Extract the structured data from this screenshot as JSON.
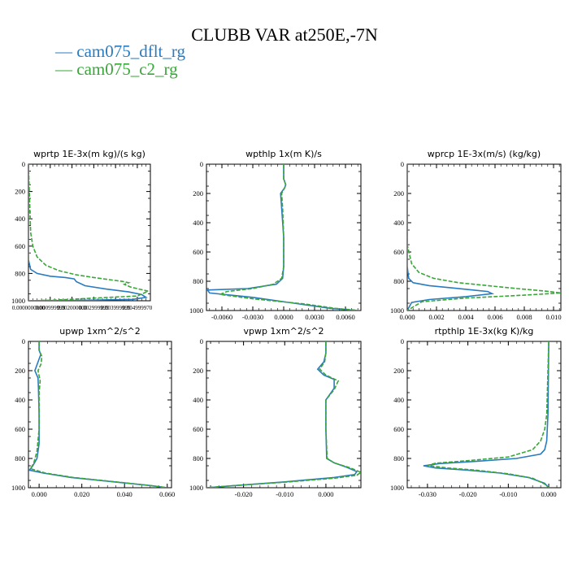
{
  "title": "CLUBB VAR at250E,-7N",
  "legend": [
    {
      "name": "cam075_dflt_rg",
      "color": "#2a7bbf",
      "dash": "solid"
    },
    {
      "name": "cam075_c2_rg",
      "color": "#3aa63a",
      "dash": "dashed"
    }
  ],
  "chart_data": [
    {
      "type": "line",
      "title": "wprtp  1E-3x(m kg)/(s kg)",
      "y_ticks": [
        "0",
        "200",
        "400",
        "600",
        "800",
        "1000"
      ],
      "ylim": [
        0,
        1000
      ],
      "x_ticks": [
        "0.0000000000",
        "0.000999999",
        "0.002000000",
        "0.002999999",
        "0.003999999",
        "0.004999970"
      ],
      "x_tick_values": [
        0.0,
        0.001,
        0.002,
        0.003,
        0.004,
        0.005
      ],
      "xlim": [
        0.0,
        0.0056
      ],
      "series": [
        {
          "name": "cam075_dflt_rg",
          "x": [
            0,
            0,
            0,
            0.0001,
            0.0004,
            0.001,
            0.0017,
            0.0021,
            0.0022,
            0.0026,
            0.0036,
            0.0046,
            0.0052,
            0.0054,
            0.0048,
            0.002,
            0
          ],
          "y": [
            0,
            500,
            700,
            770,
            800,
            820,
            830,
            840,
            860,
            890,
            915,
            935,
            955,
            975,
            990,
            998,
            1000
          ]
        },
        {
          "name": "cam075_c2_rg",
          "x": [
            0,
            0.0001,
            0.0002,
            0.0004,
            0.0008,
            0.0014,
            0.0022,
            0.003,
            0.0037,
            0.0043,
            0.0046,
            0.0044,
            0.0047,
            0.0055,
            0.005,
            0.0012,
            0
          ],
          "y": [
            0,
            500,
            600,
            680,
            740,
            780,
            810,
            830,
            845,
            858,
            868,
            880,
            900,
            930,
            965,
            995,
            1000
          ]
        }
      ]
    },
    {
      "type": "line",
      "title": "wpthlp  1x(m K)/s",
      "y_ticks": [
        "0",
        "200",
        "400",
        "600",
        "800",
        "1000"
      ],
      "ylim": [
        0,
        1000
      ],
      "x_ticks": [
        "-0.0060",
        "-0.0030",
        "0.0000",
        "0.0030",
        "0.0060"
      ],
      "x_tick_values": [
        -0.006,
        -0.003,
        0.0,
        0.003,
        0.006
      ],
      "xlim": [
        -0.0075,
        0.0075
      ],
      "series": [
        {
          "name": "cam075_dflt_rg",
          "x": [
            0,
            0,
            0.0002,
            0.0001,
            -0.0003,
            -0.0002,
            0,
            0,
            -0.0001,
            -0.0007,
            -0.0035,
            -0.0074,
            -0.0072,
            -0.003,
            0.001,
            0.0045,
            0.0072
          ],
          "y": [
            0,
            100,
            140,
            160,
            200,
            300,
            500,
            700,
            780,
            820,
            850,
            860,
            880,
            910,
            950,
            985,
            1000
          ]
        },
        {
          "name": "cam075_c2_rg",
          "x": [
            0,
            0,
            0.0002,
            0.0001,
            -0.0002,
            -0.0001,
            0,
            0,
            -0.0002,
            -0.001,
            -0.003,
            -0.0055,
            -0.0062,
            -0.003,
            0.002,
            0.005,
            0.0074
          ],
          "y": [
            0,
            100,
            140,
            160,
            200,
            300,
            500,
            700,
            780,
            820,
            850,
            870,
            890,
            920,
            955,
            985,
            1000
          ]
        }
      ]
    },
    {
      "type": "line",
      "title": "wprcp  1E-3x(m/s) (kg/kg)",
      "y_ticks": [
        "0",
        "200",
        "400",
        "600",
        "800",
        "1000"
      ],
      "ylim": [
        0,
        1000
      ],
      "x_ticks": [
        "0.000",
        "0.002",
        "0.004",
        "0.006",
        "0.008",
        "0.010"
      ],
      "x_tick_values": [
        0.0,
        0.002,
        0.004,
        0.006,
        0.008,
        0.01
      ],
      "xlim": [
        0.0,
        0.0105
      ],
      "series": [
        {
          "name": "cam075_dflt_rg",
          "x": [
            0,
            0,
            0.0001,
            0.0004,
            0.0015,
            0.003,
            0.0045,
            0.0055,
            0.0058,
            0.004,
            0.0015,
            0.0003,
            0
          ],
          "y": [
            0,
            700,
            780,
            810,
            830,
            845,
            860,
            870,
            885,
            905,
            925,
            945,
            1000
          ]
        },
        {
          "name": "cam075_c2_rg",
          "x": [
            0,
            0,
            0.0003,
            0.0008,
            0.0018,
            0.0035,
            0.0055,
            0.0075,
            0.0095,
            0.0105,
            0.008,
            0.004,
            0.001,
            0
          ],
          "y": [
            0,
            550,
            680,
            740,
            780,
            810,
            830,
            850,
            868,
            880,
            895,
            915,
            940,
            1000
          ]
        }
      ]
    },
    {
      "type": "line",
      "title": "upwp  1xm^2/s^2",
      "y_ticks": [
        "0",
        "200",
        "400",
        "600",
        "800",
        "1000"
      ],
      "ylim": [
        0,
        1000
      ],
      "x_ticks": [
        "0.000",
        "0.020",
        "0.040",
        "0.060"
      ],
      "x_tick_values": [
        0.0,
        0.02,
        0.04,
        0.06
      ],
      "xlim": [
        -0.005,
        0.062
      ],
      "series": [
        {
          "name": "cam075_dflt_rg",
          "x": [
            0,
            0,
            0.0008,
            0,
            -0.002,
            -0.0005,
            -0.0003,
            0,
            0,
            -0.001,
            -0.003,
            -0.0045,
            0.002,
            0.015,
            0.035,
            0.052,
            0.06
          ],
          "y": [
            0,
            60,
            90,
            120,
            200,
            250,
            320,
            500,
            700,
            800,
            850,
            880,
            900,
            930,
            960,
            985,
            1000
          ]
        },
        {
          "name": "cam075_c2_rg",
          "x": [
            0,
            0,
            0.0012,
            0.001,
            -0.0005,
            0.0005,
            0,
            0,
            -0.001,
            -0.0025,
            -0.004,
            0.003,
            0.016,
            0.036,
            0.052,
            0.06
          ],
          "y": [
            0,
            60,
            100,
            150,
            200,
            270,
            350,
            600,
            750,
            830,
            870,
            900,
            930,
            960,
            985,
            1000
          ]
        }
      ]
    },
    {
      "type": "line",
      "title": "vpwp  1xm^2/s^2",
      "y_ticks": [
        "0",
        "200",
        "400",
        "600",
        "800",
        "1000"
      ],
      "ylim": [
        0,
        1000
      ],
      "x_ticks": [
        "-0.020",
        "-0.010",
        "0.000"
      ],
      "x_tick_values": [
        -0.02,
        -0.01,
        0.0
      ],
      "xlim": [
        -0.029,
        0.0085
      ],
      "series": [
        {
          "name": "cam075_dflt_rg",
          "x": [
            0,
            0,
            -0.0005,
            -0.002,
            -0.0005,
            0.002,
            0.002,
            0,
            0,
            0.0002,
            0.002,
            0.005,
            0.0075,
            0.007,
            0.002,
            -0.01,
            -0.022,
            -0.029
          ],
          "y": [
            0,
            80,
            140,
            190,
            230,
            260,
            320,
            400,
            600,
            800,
            830,
            860,
            890,
            910,
            930,
            960,
            985,
            1000
          ]
        },
        {
          "name": "cam075_c2_rg",
          "x": [
            0,
            0,
            -0.0003,
            -0.0015,
            0,
            0.003,
            0.002,
            0,
            0,
            0.0003,
            0.002,
            0.006,
            0.0085,
            0.0075,
            0.002,
            -0.01,
            -0.022,
            -0.029
          ],
          "y": [
            0,
            80,
            140,
            190,
            230,
            270,
            330,
            400,
            600,
            800,
            830,
            865,
            895,
            915,
            935,
            962,
            985,
            1000
          ]
        }
      ]
    },
    {
      "type": "line",
      "title": "rtpthlp  1E-3x(kg K)/kg",
      "y_ticks": [
        "0",
        "200",
        "400",
        "600",
        "800",
        "1000"
      ],
      "ylim": [
        0,
        1000
      ],
      "x_ticks": [
        "-0.030",
        "-0.020",
        "-0.010",
        "0.000"
      ],
      "x_tick_values": [
        -0.03,
        -0.02,
        -0.01,
        0.0
      ],
      "xlim": [
        -0.035,
        0.003
      ],
      "series": [
        {
          "name": "cam075_dflt_rg",
          "x": [
            0,
            -0.0002,
            -0.0005,
            -0.001,
            -0.002,
            -0.008,
            -0.018,
            -0.027,
            -0.031,
            -0.028,
            -0.02,
            -0.012,
            -0.005,
            -0.001,
            0
          ],
          "y": [
            0,
            500,
            680,
            740,
            770,
            800,
            820,
            835,
            850,
            865,
            880,
            900,
            930,
            970,
            1000
          ]
        },
        {
          "name": "cam075_c2_rg",
          "x": [
            0,
            -0.0005,
            -0.001,
            -0.002,
            -0.004,
            -0.01,
            -0.02,
            -0.028,
            -0.03,
            -0.025,
            -0.018,
            -0.01,
            -0.004,
            -0.001,
            0
          ],
          "y": [
            0,
            500,
            600,
            680,
            740,
            790,
            815,
            832,
            848,
            865,
            880,
            905,
            935,
            975,
            1000
          ]
        }
      ]
    }
  ]
}
